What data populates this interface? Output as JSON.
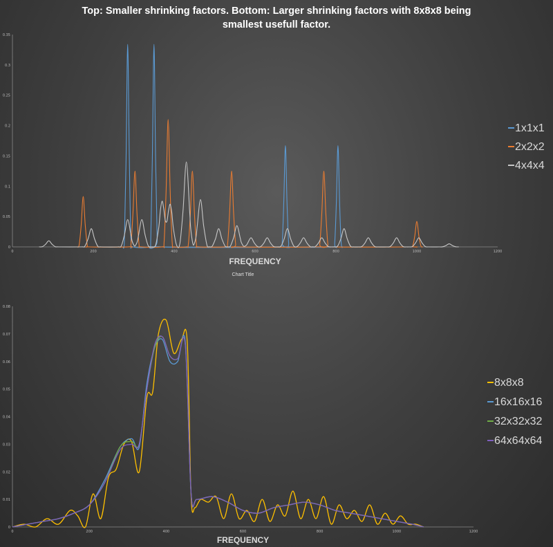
{
  "title_line1": "Top: Smaller shrinking factors. Bottom: Larger shrinking factors with 8x8x8 being",
  "title_line2": "smallest usefull factor.",
  "chart_data": [
    {
      "type": "line",
      "title": "",
      "xlabel": "FREQUENCY",
      "ylabel": "",
      "xlim": [
        0,
        1200
      ],
      "ylim": [
        0,
        0.35
      ],
      "x_ticks": [
        "0",
        "200",
        "400",
        "600",
        "800",
        "1000",
        "1200"
      ],
      "y_ticks": [
        "0",
        "0.05",
        "0.1",
        "0.15",
        "0.2",
        "0.25",
        "0.3",
        "0.35"
      ],
      "grid": false,
      "legend_position": "right",
      "series": [
        {
          "name": "1x1x1",
          "color": "#5b9bd5",
          "peaks": [
            [
              285,
              0.334
            ],
            [
              350,
              0.334
            ],
            [
              675,
              0.167
            ],
            [
              805,
              0.167
            ]
          ],
          "width": 4
        },
        {
          "name": "2x2x2",
          "color": "#ed7d31",
          "peaks": [
            [
              175,
              0.083
            ],
            [
              303,
              0.125
            ],
            [
              385,
              0.21
            ],
            [
              445,
              0.125
            ],
            [
              542,
              0.125
            ],
            [
              770,
              0.125
            ],
            [
              1000,
              0.042
            ]
          ],
          "width": 5
        },
        {
          "name": "4x4x4",
          "color": "#c8c8c8",
          "peaks": [
            [
              90,
              0.01
            ],
            [
              195,
              0.03
            ],
            [
              285,
              0.045
            ],
            [
              320,
              0.045
            ],
            [
              370,
              0.075
            ],
            [
              390,
              0.07
            ],
            [
              430,
              0.14
            ],
            [
              465,
              0.078
            ],
            [
              510,
              0.03
            ],
            [
              555,
              0.035
            ],
            [
              590,
              0.015
            ],
            [
              630,
              0.015
            ],
            [
              680,
              0.03
            ],
            [
              720,
              0.015
            ],
            [
              765,
              0.015
            ],
            [
              820,
              0.03
            ],
            [
              880,
              0.015
            ],
            [
              950,
              0.015
            ],
            [
              1005,
              0.015
            ],
            [
              1080,
              0.005
            ]
          ],
          "width": 8
        }
      ]
    },
    {
      "type": "line",
      "title": "Chart Title",
      "xlabel": "FREQUENCY",
      "ylabel": "",
      "xlim": [
        0,
        1200
      ],
      "ylim": [
        0,
        0.08
      ],
      "x_ticks": [
        "0",
        "200",
        "400",
        "600",
        "800",
        "1000",
        "1200"
      ],
      "y_ticks": [
        "0",
        "0.01",
        "0.02",
        "0.03",
        "0.04",
        "0.05",
        "0.06",
        "0.07",
        "0.08"
      ],
      "grid": false,
      "legend_position": "right",
      "series": [
        {
          "name": "8x8x8",
          "color": "#ffc000",
          "x": [
            0,
            30,
            60,
            90,
            120,
            150,
            170,
            190,
            210,
            230,
            250,
            270,
            290,
            310,
            330,
            350,
            365,
            380,
            400,
            420,
            440,
            455,
            465,
            475,
            490,
            510,
            530,
            550,
            570,
            590,
            610,
            630,
            650,
            670,
            690,
            710,
            730,
            750,
            770,
            790,
            810,
            830,
            850,
            870,
            890,
            910,
            930,
            950,
            970,
            990,
            1010,
            1030,
            1050,
            1070
          ],
          "y": [
            0.0,
            0.001,
            0.0,
            0.003,
            0.001,
            0.006,
            0.004,
            0.0,
            0.012,
            0.003,
            0.018,
            0.021,
            0.03,
            0.031,
            0.02,
            0.047,
            0.049,
            0.07,
            0.075,
            0.063,
            0.068,
            0.067,
            0.011,
            0.007,
            0.01,
            0.009,
            0.011,
            0.003,
            0.012,
            0.003,
            0.006,
            0.002,
            0.01,
            0.002,
            0.008,
            0.004,
            0.013,
            0.003,
            0.01,
            0.003,
            0.011,
            0.001,
            0.008,
            0.003,
            0.006,
            0.002,
            0.008,
            0.001,
            0.005,
            0.001,
            0.004,
            0.001,
            0.001,
            0.0
          ]
        },
        {
          "name": "16x16x16",
          "color": "#5b9bd5",
          "x": [
            0,
            40,
            80,
            120,
            160,
            200,
            240,
            280,
            310,
            330,
            350,
            370,
            390,
            410,
            430,
            450,
            465,
            480,
            520,
            560,
            600,
            640,
            680,
            720,
            760,
            800,
            840,
            880,
            920,
            960,
            1000,
            1040,
            1070
          ],
          "y": [
            0.0,
            0.001,
            0.002,
            0.003,
            0.005,
            0.008,
            0.017,
            0.029,
            0.032,
            0.029,
            0.052,
            0.065,
            0.068,
            0.06,
            0.06,
            0.067,
            0.012,
            0.01,
            0.011,
            0.009,
            0.006,
            0.005,
            0.007,
            0.008,
            0.009,
            0.008,
            0.006,
            0.005,
            0.004,
            0.003,
            0.002,
            0.001,
            0.0
          ]
        },
        {
          "name": "32x32x32",
          "color": "#70ad47",
          "x": [
            0,
            40,
            80,
            120,
            160,
            200,
            240,
            280,
            310,
            330,
            350,
            370,
            390,
            410,
            430,
            450,
            465,
            480,
            520,
            560,
            600,
            640,
            680,
            720,
            760,
            800,
            840,
            880,
            920,
            960,
            1000,
            1040,
            1070
          ],
          "y": [
            0.0,
            0.001,
            0.002,
            0.003,
            0.005,
            0.008,
            0.016,
            0.029,
            0.031,
            0.03,
            0.05,
            0.065,
            0.069,
            0.062,
            0.061,
            0.066,
            0.012,
            0.01,
            0.011,
            0.009,
            0.006,
            0.005,
            0.007,
            0.008,
            0.009,
            0.008,
            0.006,
            0.005,
            0.004,
            0.003,
            0.002,
            0.001,
            0.0
          ]
        },
        {
          "name": "64x64x64",
          "color": "#7f5fbf",
          "x": [
            0,
            40,
            80,
            120,
            160,
            200,
            240,
            280,
            310,
            330,
            350,
            370,
            390,
            410,
            430,
            450,
            465,
            480,
            520,
            560,
            600,
            640,
            680,
            720,
            760,
            800,
            840,
            880,
            920,
            960,
            1000,
            1040,
            1070
          ],
          "y": [
            0.0,
            0.001,
            0.002,
            0.003,
            0.005,
            0.008,
            0.016,
            0.028,
            0.03,
            0.03,
            0.05,
            0.066,
            0.069,
            0.062,
            0.061,
            0.066,
            0.012,
            0.01,
            0.011,
            0.009,
            0.006,
            0.005,
            0.007,
            0.008,
            0.009,
            0.008,
            0.006,
            0.005,
            0.004,
            0.003,
            0.002,
            0.001,
            0.0
          ]
        }
      ]
    }
  ]
}
